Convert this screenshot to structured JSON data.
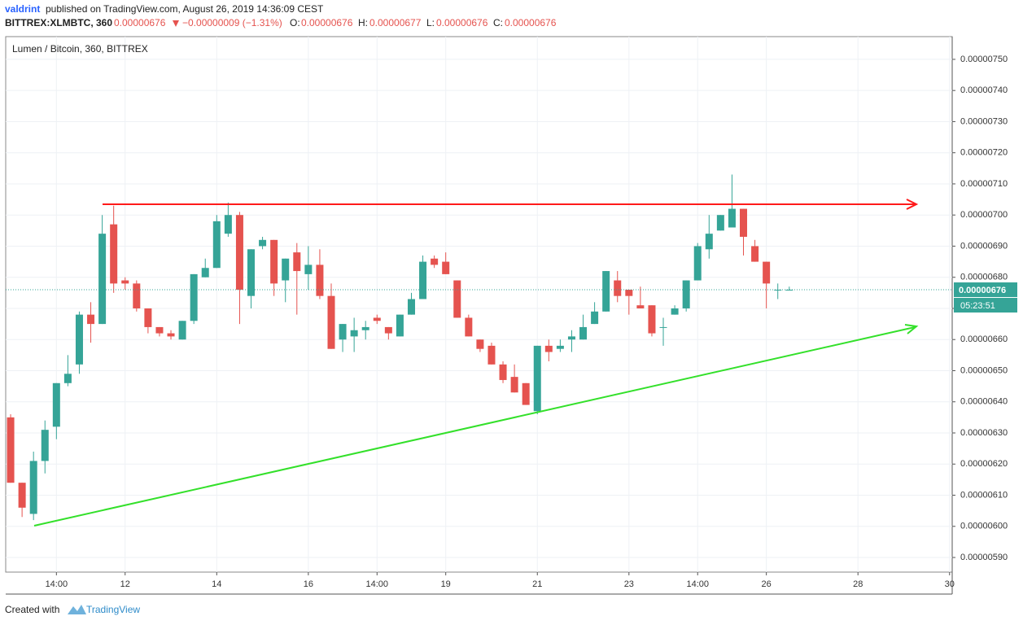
{
  "header": {
    "author": "valdrint",
    "published": "published on TradingView.com, August 26, 2019 14:36:09 CEST"
  },
  "symbol_line": {
    "symbol": "BITTREX:XLMBTC, 360",
    "price": "0.00000676",
    "change": "−0.00000009 (−1.31%)",
    "open_label": "O:",
    "open": "0.00000676",
    "high_label": "H:",
    "high": "0.00000677",
    "low_label": "L:",
    "low": "0.00000676",
    "close_label": "C:",
    "close": "0.00000676"
  },
  "footer": {
    "created": "Created with",
    "brand": "TradingView"
  },
  "chart_data": {
    "type": "candlestick",
    "title": "Lumen / Bitcoin, 360, BITTREX",
    "categories": [
      null,
      null,
      null,
      null,
      "14:00",
      null,
      null,
      null,
      null,
      null,
      "12",
      null,
      null,
      null,
      null,
      null,
      null,
      null,
      "14",
      null,
      null,
      null,
      null,
      null,
      null,
      null,
      "16",
      null,
      null,
      null,
      null,
      null,
      "14:00",
      null,
      null,
      null,
      null,
      null,
      "19",
      null,
      null,
      null,
      null,
      null,
      null,
      null,
      "21",
      null,
      null,
      null,
      null,
      null,
      null,
      null,
      "23",
      null,
      null,
      null,
      null,
      null,
      "14:00",
      null,
      null,
      null,
      null,
      null,
      "26",
      null,
      null,
      null,
      null,
      null,
      null,
      null,
      "28",
      null,
      null,
      null,
      null,
      null,
      null,
      null,
      "30"
    ],
    "open": [
      6.35e-06,
      6.14e-06,
      6.04e-06,
      6.21e-06,
      6.32e-06,
      6.46e-06,
      6.52e-06,
      6.68e-06,
      6.65e-06,
      6.97e-06,
      6.79e-06,
      6.78e-06,
      6.7e-06,
      6.64e-06,
      6.62e-06,
      6.6e-06,
      6.66e-06,
      6.8e-06,
      6.83e-06,
      6.94e-06,
      7e-06,
      6.74e-06,
      6.9e-06,
      6.92e-06,
      6.79e-06,
      6.88e-06,
      6.81e-06,
      6.84e-06,
      6.74e-06,
      6.6e-06,
      6.61e-06,
      6.63e-06,
      6.67e-06,
      6.64e-06,
      6.61e-06,
      6.68e-06,
      6.73e-06,
      6.86e-06,
      6.85e-06,
      6.79e-06,
      6.67e-06,
      6.6e-06,
      6.58e-06,
      6.52e-06,
      6.48e-06,
      6.46e-06,
      6.37e-06,
      6.58e-06,
      6.57e-06,
      6.6e-06,
      6.6e-06,
      6.65e-06,
      6.69e-06,
      6.79e-06,
      6.76e-06,
      6.71e-06,
      6.71e-06,
      6.64e-06,
      6.68e-06,
      6.7e-06,
      6.79e-06,
      6.89e-06,
      6.95e-06,
      6.96e-06,
      7.02e-06,
      6.9e-06,
      6.85e-06,
      6.76e-06,
      6.76e-06,
      null,
      null,
      null,
      null,
      null,
      null,
      null,
      null,
      null,
      null,
      null,
      null,
      null,
      null
    ],
    "high": [
      6.36e-06,
      6.14e-06,
      6.24e-06,
      6.34e-06,
      6.46e-06,
      6.55e-06,
      6.69e-06,
      6.72e-06,
      7e-06,
      7.03e-06,
      6.8e-06,
      6.79e-06,
      6.7e-06,
      6.64e-06,
      6.63e-06,
      6.66e-06,
      6.81e-06,
      6.86e-06,
      7e-06,
      7.04e-06,
      7.01e-06,
      6.89e-06,
      6.93e-06,
      6.92e-06,
      6.86e-06,
      6.91e-06,
      6.9e-06,
      6.89e-06,
      6.78e-06,
      6.65e-06,
      6.67e-06,
      6.66e-06,
      6.68e-06,
      6.64e-06,
      6.68e-06,
      6.75e-06,
      6.87e-06,
      6.87e-06,
      6.88e-06,
      6.79e-06,
      6.68e-06,
      6.6e-06,
      6.59e-06,
      6.53e-06,
      6.52e-06,
      6.46e-06,
      6.58e-06,
      6.6e-06,
      6.6e-06,
      6.63e-06,
      6.68e-06,
      6.72e-06,
      6.82e-06,
      6.82e-06,
      6.76e-06,
      6.77e-06,
      6.71e-06,
      6.67e-06,
      6.71e-06,
      6.79e-06,
      6.91e-06,
      7e-06,
      7e-06,
      7.13e-06,
      7.02e-06,
      6.92e-06,
      6.85e-06,
      6.78e-06,
      6.77e-06,
      null,
      null,
      null,
      null,
      null,
      null,
      null,
      null,
      null,
      null,
      null,
      null,
      null,
      null
    ],
    "low": [
      6.14e-06,
      6.03e-06,
      6.02e-06,
      6.17e-06,
      6.28e-06,
      6.45e-06,
      6.49e-06,
      6.59e-06,
      6.65e-06,
      6.75e-06,
      6.76e-06,
      6.69e-06,
      6.62e-06,
      6.61e-06,
      6.6e-06,
      6.6e-06,
      6.65e-06,
      6.8e-06,
      6.83e-06,
      6.93e-06,
      6.65e-06,
      6.7e-06,
      6.89e-06,
      6.74e-06,
      6.72e-06,
      6.68e-06,
      6.76e-06,
      6.73e-06,
      6.57e-06,
      6.56e-06,
      6.56e-06,
      6.6e-06,
      6.65e-06,
      6.6e-06,
      6.61e-06,
      6.68e-06,
      6.73e-06,
      6.83e-06,
      6.81e-06,
      6.67e-06,
      6.61e-06,
      6.56e-06,
      6.52e-06,
      6.46e-06,
      6.43e-06,
      6.39e-06,
      6.36e-06,
      6.53e-06,
      6.56e-06,
      6.56e-06,
      6.6e-06,
      6.65e-06,
      6.69e-06,
      6.72e-06,
      6.68e-06,
      6.7e-06,
      6.61e-06,
      6.58e-06,
      6.68e-06,
      6.69e-06,
      6.79e-06,
      6.86e-06,
      6.95e-06,
      6.96e-06,
      6.87e-06,
      6.85e-06,
      6.7e-06,
      6.73e-06,
      6.76e-06,
      null,
      null,
      null,
      null,
      null,
      null,
      null,
      null,
      null,
      null,
      null,
      null,
      null,
      null
    ],
    "close": [
      6.14e-06,
      6.06e-06,
      6.21e-06,
      6.31e-06,
      6.46e-06,
      6.49e-06,
      6.68e-06,
      6.65e-06,
      6.94e-06,
      6.78e-06,
      6.78e-06,
      6.7e-06,
      6.64e-06,
      6.62e-06,
      6.61e-06,
      6.66e-06,
      6.81e-06,
      6.83e-06,
      6.98e-06,
      7e-06,
      6.76e-06,
      6.89e-06,
      6.92e-06,
      6.78e-06,
      6.86e-06,
      6.82e-06,
      6.84e-06,
      6.74e-06,
      6.57e-06,
      6.65e-06,
      6.63e-06,
      6.64e-06,
      6.66e-06,
      6.62e-06,
      6.68e-06,
      6.73e-06,
      6.85e-06,
      6.84e-06,
      6.81e-06,
      6.67e-06,
      6.61e-06,
      6.57e-06,
      6.52e-06,
      6.47e-06,
      6.43e-06,
      6.39e-06,
      6.58e-06,
      6.56e-06,
      6.58e-06,
      6.61e-06,
      6.64e-06,
      6.69e-06,
      6.82e-06,
      6.74e-06,
      6.74e-06,
      6.7e-06,
      6.62e-06,
      6.64e-06,
      6.7e-06,
      6.79e-06,
      6.9e-06,
      6.94e-06,
      7e-06,
      7.02e-06,
      6.93e-06,
      6.85e-06,
      6.78e-06,
      6.76e-06,
      6.76e-06,
      null,
      null,
      null,
      null,
      null,
      null,
      null,
      null,
      null,
      null,
      null,
      null,
      null,
      null
    ],
    "up_color": "#35a497",
    "down_color": "#e5534f",
    "ylim": [
      5.853e-06,
      7.573e-06
    ],
    "yticks": [
      {
        "value": 5.9e-06,
        "label": "0.00000590"
      },
      {
        "value": 6e-06,
        "label": "0.00000600"
      },
      {
        "value": 6.1e-06,
        "label": "0.00000610"
      },
      {
        "value": 6.2e-06,
        "label": "0.00000620"
      },
      {
        "value": 6.3e-06,
        "label": "0.00000630"
      },
      {
        "value": 6.4e-06,
        "label": "0.00000640"
      },
      {
        "value": 6.5e-06,
        "label": "0.00000650"
      },
      {
        "value": 6.6e-06,
        "label": "0.00000660"
      },
      {
        "value": 6.7e-06,
        "label": "0.00000670"
      },
      {
        "value": 6.8e-06,
        "label": "0.00000680"
      },
      {
        "value": 6.9e-06,
        "label": "0.00000690"
      },
      {
        "value": 7e-06,
        "label": "0.00000700"
      },
      {
        "value": 7.1e-06,
        "label": "0.00000710"
      },
      {
        "value": 7.2e-06,
        "label": "0.00000720"
      },
      {
        "value": 7.3e-06,
        "label": "0.00000730"
      },
      {
        "value": 7.4e-06,
        "label": "0.00000740"
      },
      {
        "value": 7.5e-06,
        "label": "0.00000750"
      }
    ],
    "last_price": {
      "value": 6.76e-06,
      "label": "0.00000676"
    },
    "countdown": "05:23:51",
    "grid": true
  }
}
